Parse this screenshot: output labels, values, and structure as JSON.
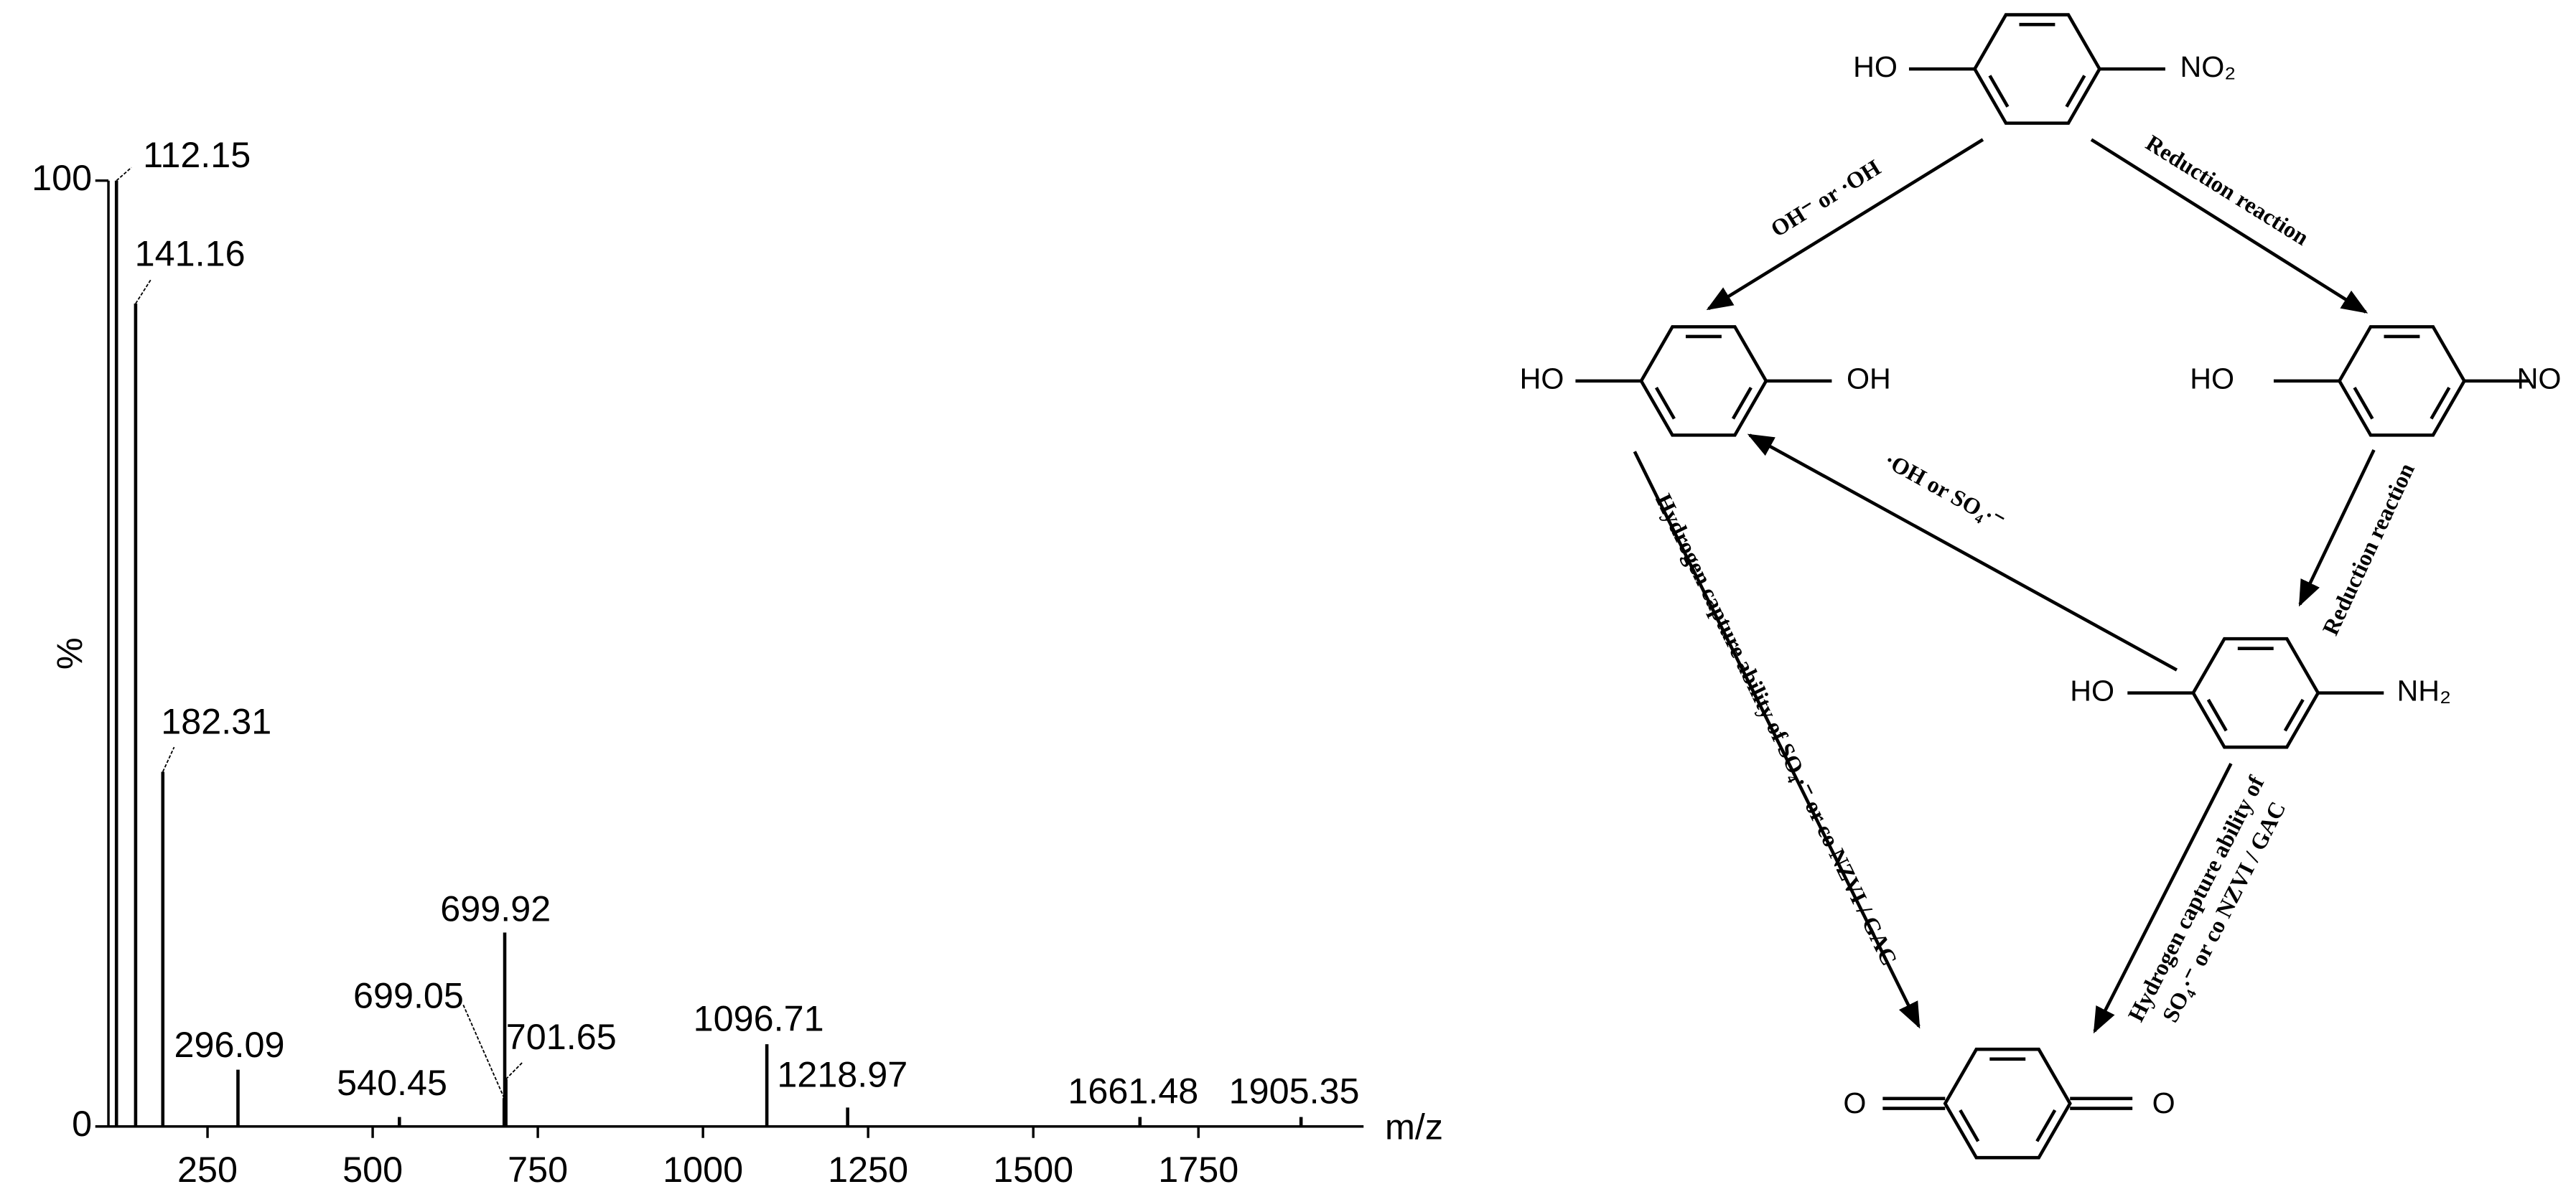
{
  "chart_data": {
    "type": "bar",
    "x_label": "m/z",
    "y_label": "%",
    "x": [
      112.15,
      141.16,
      182.31,
      296.09,
      540.45,
      699.05,
      699.92,
      701.65,
      1096.71,
      1218.97,
      1661.48,
      1905.35
    ],
    "values": [
      100,
      87,
      37.5,
      6,
      1,
      3,
      20.5,
      5,
      8.7,
      2,
      1,
      1
    ],
    "color": "#000000",
    "xlim": [
      100,
      2000
    ],
    "xticks": [
      250,
      500,
      750,
      1000,
      1250,
      1500,
      1750
    ],
    "ylim": [
      0,
      100
    ],
    "yticks": [
      0,
      100
    ]
  },
  "diagram": {
    "nodes": [
      {
        "left": "HO",
        "right": "NO₂"
      },
      {
        "left": "HO",
        "right": "OH"
      },
      {
        "left": "HO",
        "right": "NO"
      },
      {
        "left": "HO",
        "right": "NH₂"
      },
      {
        "left": "O",
        "right": "O"
      }
    ],
    "edges": [
      {
        "label": [
          "OH⁻ or ·OH"
        ]
      },
      {
        "label": [
          "Reduction reaction"
        ]
      },
      {
        "label": [
          "Reduction reaction"
        ]
      },
      {
        "label": [
          "·OH or SO₄·⁻"
        ]
      },
      {
        "label": [
          "Hydrogen capture ability of SO₄·⁻ or co NZVI / GAC"
        ]
      },
      {
        "label": [
          "Hydrogen capture ability of",
          "SO₄·⁻ or co NZVI / GAC"
        ]
      }
    ]
  }
}
